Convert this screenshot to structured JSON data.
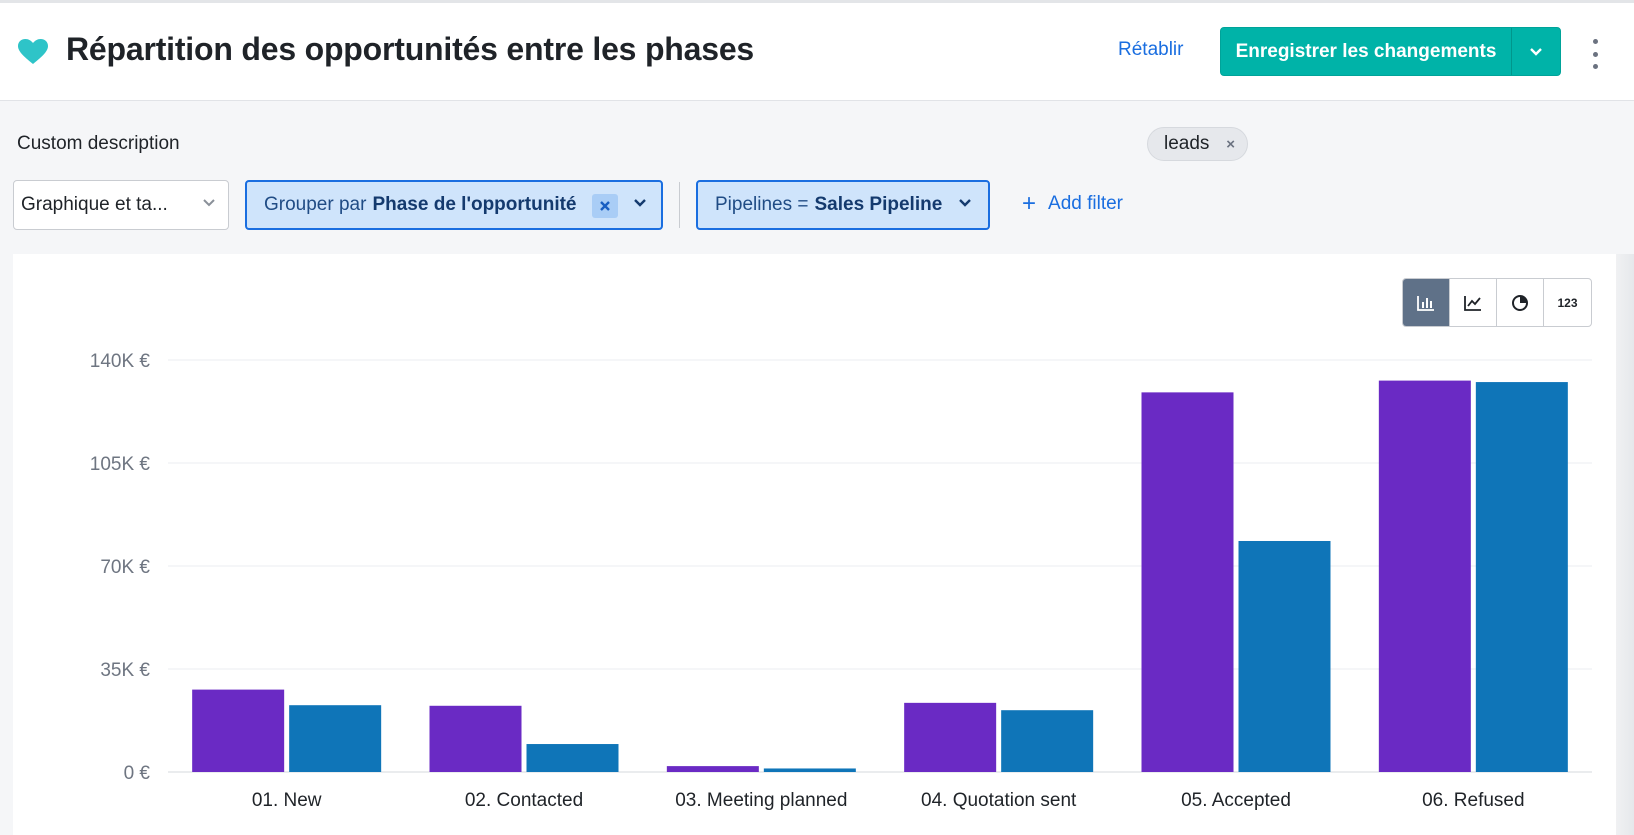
{
  "header": {
    "title": "Répartition des opportunités entre les phases",
    "reset_label": "Rétablir",
    "save_label": "Enregistrer les changements",
    "heart_color": "#2ec4c8"
  },
  "description": "Custom description",
  "tag": {
    "label": "leads",
    "remove_symbol": "×"
  },
  "filters": {
    "view_select_value": "Graphique et ta...",
    "groupby_prefix": "Grouper par",
    "groupby_value": "Phase de l'opportunité",
    "pipeline_prefix": "Pipelines =",
    "pipeline_value": "Sales Pipeline",
    "add_filter_label": "Add filter"
  },
  "chart_types": {
    "buttons": [
      {
        "name": "bar-chart-icon",
        "active": true
      },
      {
        "name": "line-chart-icon",
        "active": false
      },
      {
        "name": "pie-chart-icon",
        "active": false
      },
      {
        "name": "number-icon",
        "label": "123",
        "active": false
      }
    ]
  },
  "colors": {
    "accent": "#00b3a8",
    "link": "#1a6ee0",
    "series_1": "#6a2ac4",
    "series_2": "#0f75b8"
  },
  "chart_data": {
    "type": "bar",
    "categories": [
      "01. New",
      "02. Contacted",
      "03. Meeting planned",
      "04. Quotation sent",
      "05. Accepted",
      "06. Refused"
    ],
    "series": [
      {
        "color": "#6a2ac4",
        "values": [
          28000,
          22500,
          2000,
          23500,
          129000,
          133000
        ]
      },
      {
        "color": "#0f75b8",
        "values": [
          22700,
          9500,
          1200,
          21000,
          78500,
          132500
        ]
      }
    ],
    "ylim": [
      0,
      140000
    ],
    "yticks": [
      0,
      35000,
      70000,
      105000,
      140000
    ],
    "ytick_labels": [
      "0 €",
      "35K €",
      "70K €",
      "105K €",
      "140K €"
    ],
    "grid": true,
    "xlabel": "",
    "ylabel": ""
  }
}
